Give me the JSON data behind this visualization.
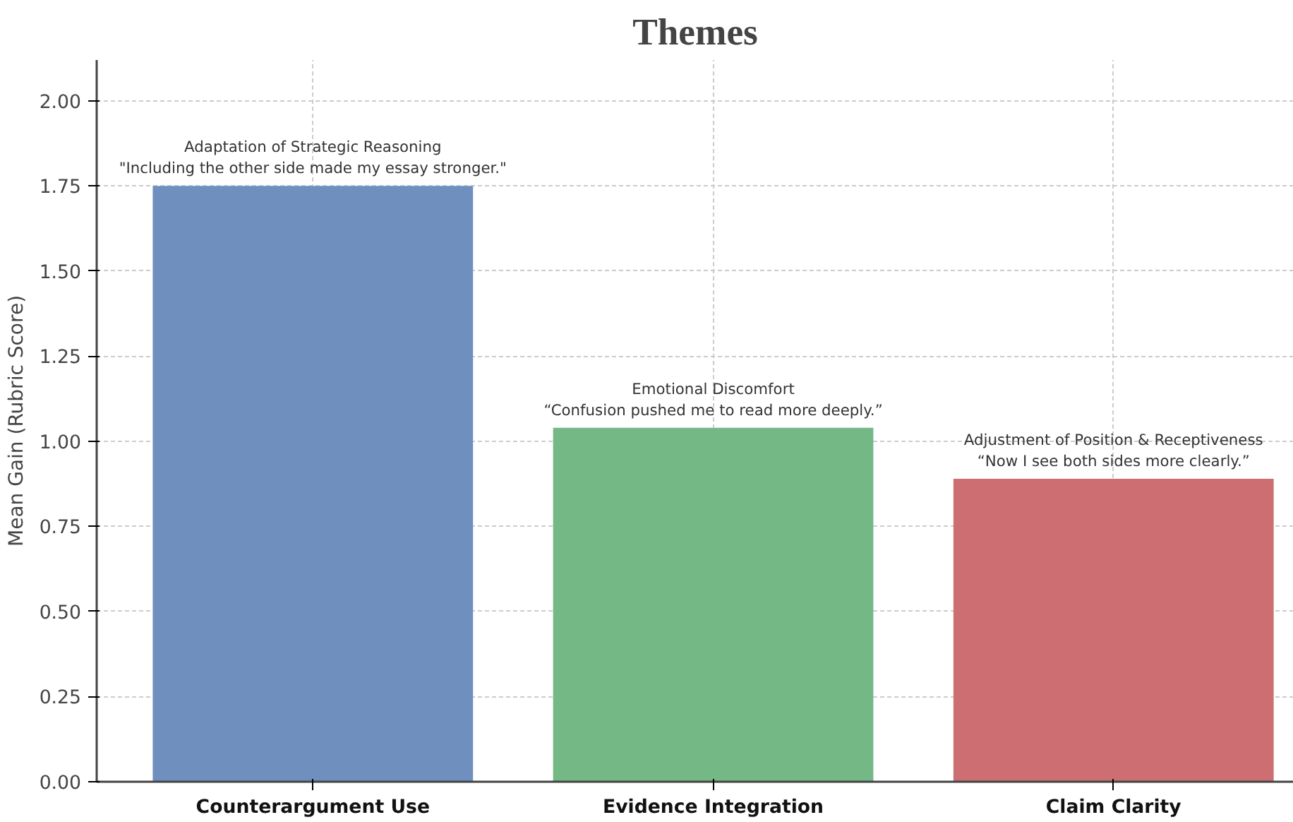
{
  "chart_data": {
    "type": "bar",
    "title": "Themes",
    "ylabel": "Mean Gain (Rubric Score)",
    "categories": [
      "Counterargument Use",
      "Evidence Integration",
      "Claim Clarity"
    ],
    "values": [
      1.75,
      1.04,
      0.89
    ],
    "colors": [
      "#6f8fbf",
      "#74b886",
      "#cc6e72"
    ],
    "ylim": [
      0,
      2.12
    ],
    "yticks": [
      {
        "value": 0,
        "label": "0.00"
      },
      {
        "value": 0.25,
        "label": "0.25"
      },
      {
        "value": 0.5,
        "label": "0.50"
      },
      {
        "value": 0.75,
        "label": "0.75"
      },
      {
        "value": 1,
        "label": "1.00"
      },
      {
        "value": 1.25,
        "label": "1.25"
      },
      {
        "value": 1.5,
        "label": "1.50"
      },
      {
        "value": 1.75,
        "label": "1.75"
      },
      {
        "value": 2,
        "label": "2.00"
      }
    ],
    "grid": true,
    "annotations": [
      {
        "text": "Adaptation of Strategic Reasoning\n\"Including the other side made my essay stronger.\"",
        "x": "Counterargument Use",
        "y": 1.75
      },
      {
        "text": "Emotional Discomfort\n“Confusion pushed me to read more deeply.”",
        "x": "Evidence Integration",
        "y": 1.04
      },
      {
        "text": "Adjustment of Position & Receptiveness\n“Now I see both sides more clearly.”",
        "x": "Claim Clarity",
        "y": 0.89
      }
    ]
  }
}
